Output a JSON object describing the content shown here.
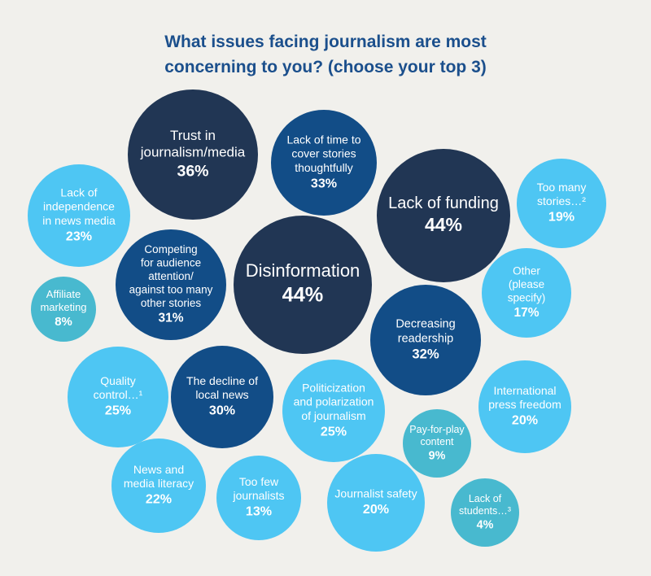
{
  "chart_data": {
    "type": "bubble",
    "title_lines": [
      "What issues facing journalism are most",
      "concerning to you? (choose your top 3)"
    ],
    "colors": {
      "background": "#f1f0ec",
      "navy": "#213654",
      "blue": "#124d87",
      "light": "#4ec6f3",
      "teal": "#48b9cf",
      "title": "#1b4f8c"
    },
    "bubbles": [
      {
        "label": [
          "Trust in",
          "journalism/media"
        ],
        "value": 36,
        "value_label": "36%",
        "color": "navy"
      },
      {
        "label": [
          "Lack of time to",
          "cover stories",
          "thoughtfully"
        ],
        "value": 33,
        "value_label": "33%",
        "color": "blue"
      },
      {
        "label": [
          "Lack of funding"
        ],
        "value": 44,
        "value_label": "44%",
        "color": "navy"
      },
      {
        "label": [
          "Too many",
          "stories…²"
        ],
        "value": 19,
        "value_label": "19%",
        "color": "light"
      },
      {
        "label": [
          "Lack of",
          "independence",
          "in news media"
        ],
        "value": 23,
        "value_label": "23%",
        "color": "light"
      },
      {
        "label": [
          "Competing",
          "for audience",
          "attention/",
          "against too many",
          "other stories"
        ],
        "value": 31,
        "value_label": "31%",
        "color": "blue"
      },
      {
        "label": [
          "Disinformation"
        ],
        "value": 44,
        "value_label": "44%",
        "color": "navy"
      },
      {
        "label": [
          "Affiliate",
          "marketing"
        ],
        "value": 8,
        "value_label": "8%",
        "color": "teal"
      },
      {
        "label": [
          "Other",
          "(please",
          "specify)"
        ],
        "value": 17,
        "value_label": "17%",
        "color": "light"
      },
      {
        "label": [
          "Decreasing",
          "readership"
        ],
        "value": 32,
        "value_label": "32%",
        "color": "blue"
      },
      {
        "label": [
          "Quality",
          "control…¹"
        ],
        "value": 25,
        "value_label": "25%",
        "color": "light"
      },
      {
        "label": [
          "The decline of",
          "local news"
        ],
        "value": 30,
        "value_label": "30%",
        "color": "blue"
      },
      {
        "label": [
          "Politicization",
          "and polarization",
          "of journalism"
        ],
        "value": 25,
        "value_label": "25%",
        "color": "light"
      },
      {
        "label": [
          "International",
          "press freedom"
        ],
        "value": 20,
        "value_label": "20%",
        "color": "light"
      },
      {
        "label": [
          "Pay-for-play",
          "content"
        ],
        "value": 9,
        "value_label": "9%",
        "color": "teal"
      },
      {
        "label": [
          "News and",
          "media literacy"
        ],
        "value": 22,
        "value_label": "22%",
        "color": "light"
      },
      {
        "label": [
          "Too few",
          "journalists"
        ],
        "value": 13,
        "value_label": "13%",
        "color": "light"
      },
      {
        "label": [
          "Journalist safety"
        ],
        "value": 20,
        "value_label": "20%",
        "color": "light"
      },
      {
        "label": [
          "Lack of",
          "students…³"
        ],
        "value": 4,
        "value_label": "4%",
        "color": "teal"
      }
    ]
  }
}
